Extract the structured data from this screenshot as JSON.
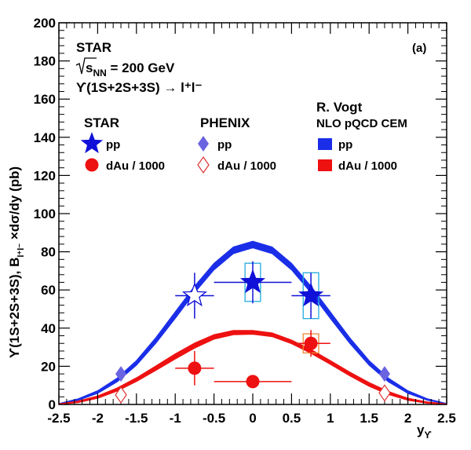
{
  "chart_data": {
    "type": "scatter",
    "panel_label": "(a)",
    "xlabel": "y",
    "xlabel_sub": "ϒ",
    "ylabel": "ϒ(1S+2S+3S),  B",
    "ylabel_sub": "l⁺l⁻",
    "ylabel_tail": " ×dσ/dy (pb)",
    "xlim": [
      -2.5,
      2.5
    ],
    "ylim": [
      0,
      200
    ],
    "xticks": [
      -2.5,
      -2,
      -1.5,
      -1,
      -0.5,
      0,
      0.5,
      1,
      1.5,
      2,
      2.5
    ],
    "xtick_labels": [
      "-2.5",
      "-2",
      "-1.5",
      "-1",
      "-0.5",
      "0",
      "0.5",
      "1",
      "1.5",
      "2",
      "2.5"
    ],
    "yticks": [
      0,
      20,
      40,
      60,
      80,
      100,
      120,
      140,
      160,
      180,
      200
    ],
    "ytick_labels": [
      "0",
      "20",
      "40",
      "60",
      "80",
      "100",
      "120",
      "140",
      "160",
      "180",
      "200"
    ],
    "info": {
      "experiment": "STAR",
      "energy_pre": "s",
      "energy_sub": "NN",
      "energy_post": " = 200 GeV",
      "process": "ϒ(1S+2S+3S) → l⁺l⁻"
    },
    "legend": {
      "star_head": "STAR",
      "phenix_head": "PHENIX",
      "theory_head": "R. Vogt",
      "theory_sub": "NLO pQCD CEM",
      "entries": {
        "star_pp": "pp",
        "star_dau": "dAu / 1000",
        "phenix_pp": "pp",
        "phenix_dau": "dAu / 1000",
        "theory_pp": "pp",
        "theory_dau": "dAu / 1000"
      }
    },
    "colors": {
      "star_pp": "#1010d8",
      "star_dau": "#ee1111",
      "phenix_pp": "#6a64e0",
      "phenix_dau": "#dd3333",
      "band_pp": "#1a2ee8",
      "band_dau": "#ee1111",
      "sys_pp": "#22aadd",
      "sys_dau": "#ee8833"
    },
    "series": [
      {
        "name": "STAR pp",
        "marker": "star",
        "points": [
          {
            "x": -0.75,
            "y": 57,
            "xerr": 0.25,
            "yerr": 12,
            "hollow": true
          },
          {
            "x": 0.0,
            "y": 64,
            "xerr": 0.5,
            "yerr": 11,
            "sys_x": 0.1,
            "sys_y": 10
          },
          {
            "x": 0.75,
            "y": 57,
            "xerr": 0.25,
            "yerr": 12,
            "sys_x": 0.1,
            "sys_y": 12
          }
        ]
      },
      {
        "name": "STAR dAu / 1000",
        "marker": "circle",
        "points": [
          {
            "x": -0.75,
            "y": 19,
            "xerr": 0.25,
            "yerr": 9
          },
          {
            "x": 0.0,
            "y": 12,
            "xerr": 0.5,
            "yerr": 3
          },
          {
            "x": 0.75,
            "y": 32,
            "xerr": 0.25,
            "yerr": 7,
            "sys_x": 0.1,
            "sys_y": 5
          }
        ]
      },
      {
        "name": "PHENIX pp",
        "marker": "diamond",
        "points": [
          {
            "x": -1.7,
            "y": 16,
            "yerr": 3
          },
          {
            "x": 1.7,
            "y": 16,
            "yerr": 3
          }
        ]
      },
      {
        "name": "PHENIX dAu / 1000",
        "marker": "diamond-open",
        "points": [
          {
            "x": -1.7,
            "y": 5
          },
          {
            "x": 1.7,
            "y": 6
          }
        ]
      }
    ],
    "bands": [
      {
        "name": "R. Vogt pp",
        "x": [
          -2.5,
          -2.25,
          -2.0,
          -1.75,
          -1.5,
          -1.25,
          -1.0,
          -0.75,
          -0.5,
          -0.25,
          0.0,
          0.25,
          0.5,
          0.75,
          1.0,
          1.25,
          1.5,
          1.75,
          2.0,
          2.25,
          2.5
        ],
        "lo": [
          0.2,
          2.2,
          5.8,
          11.8,
          20.5,
          32.0,
          45.0,
          58.5,
          70.5,
          79.0,
          82.0,
          79.0,
          70.5,
          58.5,
          45.0,
          32.0,
          20.5,
          11.8,
          5.8,
          2.2,
          0.2
        ],
        "hi": [
          0.5,
          3.0,
          7.2,
          13.8,
          23.0,
          35.0,
          48.5,
          62.0,
          74.0,
          82.5,
          85.5,
          82.5,
          74.0,
          62.0,
          48.5,
          35.0,
          23.0,
          13.8,
          7.2,
          3.0,
          0.5
        ]
      },
      {
        "name": "R. Vogt dAu / 1000",
        "x": [
          -2.5,
          -2.25,
          -2.0,
          -1.75,
          -1.5,
          -1.25,
          -1.0,
          -0.75,
          -0.5,
          -0.25,
          0.0,
          0.25,
          0.5,
          0.75,
          1.0,
          1.25,
          1.5,
          1.75,
          2.0,
          2.25,
          2.5
        ],
        "lo": [
          0.0,
          1.0,
          3.2,
          7.0,
          12.0,
          17.8,
          23.8,
          29.5,
          34.2,
          36.5,
          36.8,
          35.5,
          31.8,
          26.8,
          21.0,
          15.0,
          9.5,
          5.2,
          2.2,
          0.6,
          0.0
        ],
        "hi": [
          0.3,
          1.8,
          4.5,
          8.6,
          14.0,
          20.2,
          26.5,
          32.2,
          36.6,
          38.8,
          38.8,
          37.5,
          33.8,
          28.8,
          23.0,
          17.0,
          11.5,
          6.8,
          3.3,
          1.3,
          0.3
        ]
      }
    ]
  }
}
